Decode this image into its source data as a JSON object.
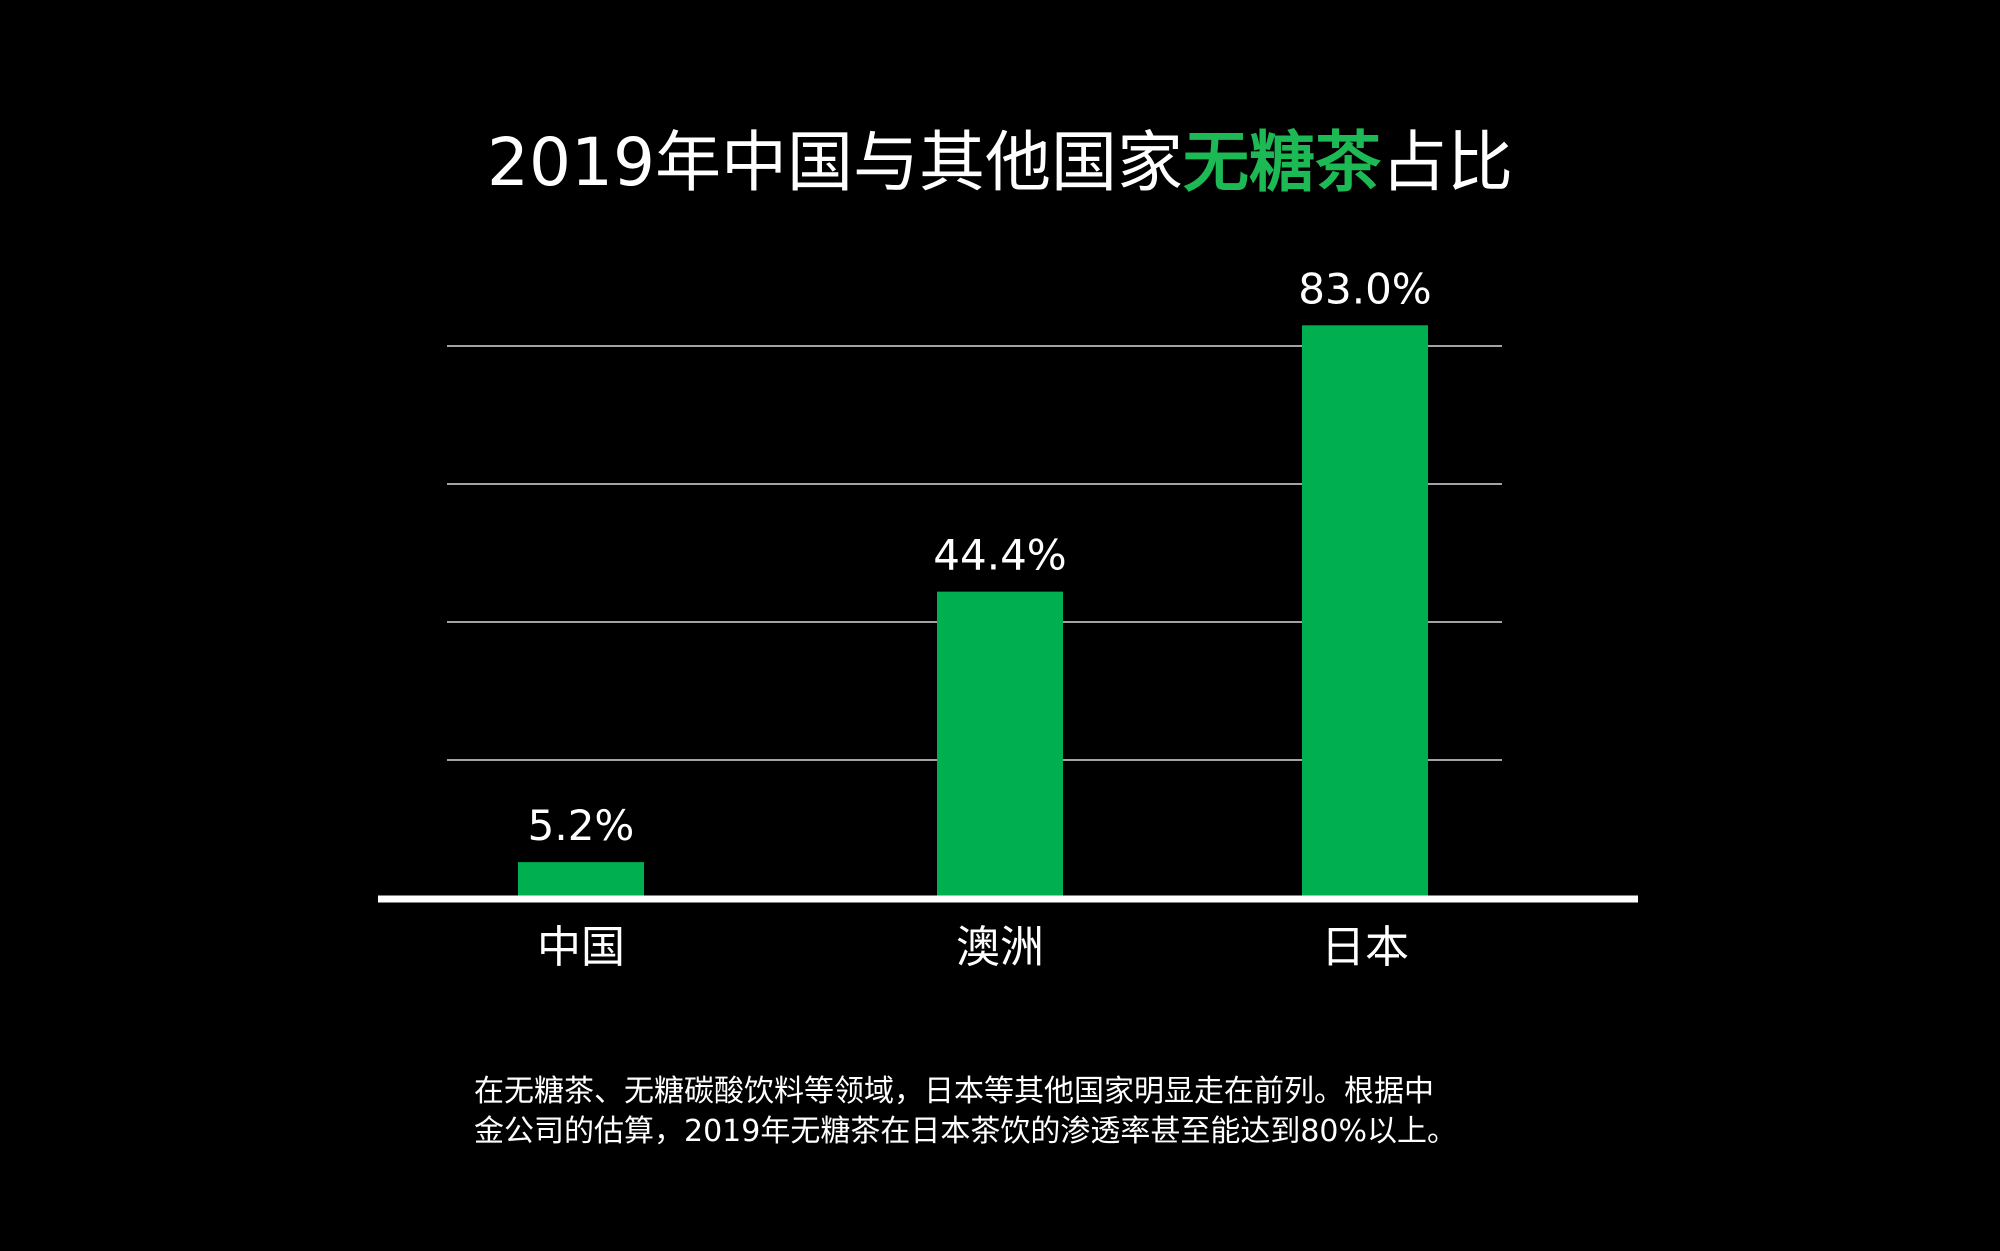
{
  "title": {
    "prefix": "2019年中国与其他国家",
    "highlight": "无糖茶",
    "suffix": "占比"
  },
  "colors": {
    "background": "#000000",
    "bar": "#00b050",
    "highlight": "#1db954",
    "text": "#ffffff",
    "grid": "#d9d9d9"
  },
  "chart_data": {
    "type": "bar",
    "title": "2019年中国与其他国家无糖茶占比",
    "xlabel": "",
    "ylabel": "",
    "categories": [
      "中国",
      "澳洲",
      "日本"
    ],
    "values": [
      5.2,
      44.4,
      83.0
    ],
    "value_labels": [
      "5.2%",
      "44.4%",
      "83.0%"
    ],
    "unit": "%",
    "ylim": [
      0,
      80
    ],
    "gridlines": [
      20,
      40,
      60,
      80
    ],
    "grid": true,
    "legend": "none"
  },
  "note": {
    "line1": "在无糖茶、无糖碳酸饮料等领域，日本等其他国家明显走在前列。根据中",
    "line2": "金公司的估算，2019年无糖茶在日本茶饮的渗透率甚至能达到80%以上。"
  }
}
